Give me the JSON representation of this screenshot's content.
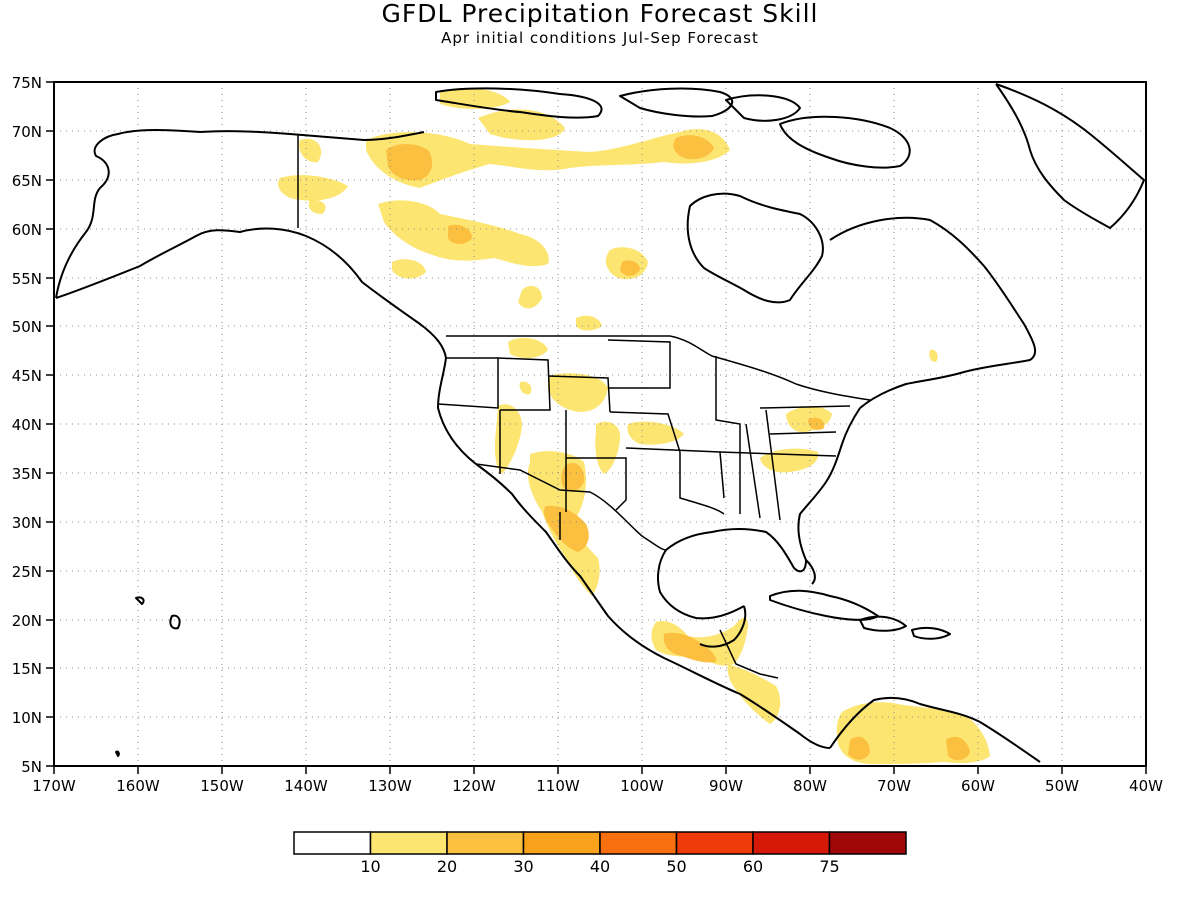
{
  "title": "GFDL Precipitation Forecast Skill",
  "subtitle": "Apr initial conditions  Jul-Sep Forecast",
  "lat_ticks": [
    "75N",
    "70N",
    "65N",
    "60N",
    "55N",
    "50N",
    "45N",
    "40N",
    "35N",
    "30N",
    "25N",
    "20N",
    "15N",
    "10N",
    "5N"
  ],
  "lon_ticks": [
    "170W",
    "160W",
    "150W",
    "140W",
    "130W",
    "120W",
    "110W",
    "100W",
    "90W",
    "80W",
    "70W",
    "60W",
    "50W",
    "40W"
  ],
  "colorbar": {
    "colors": [
      "#ffffff",
      "#fde572",
      "#fcc040",
      "#fba21c",
      "#f86f10",
      "#f03a08",
      "#d51808",
      "#a00808"
    ],
    "labels": [
      "10",
      "20",
      "30",
      "40",
      "50",
      "60",
      "75"
    ]
  },
  "colors": {
    "coast": "#000000",
    "grid": "#8c8c8c",
    "skill_10_20": "#fde572",
    "skill_20_30": "#fcc040",
    "skill_30_40": "#fba21c"
  },
  "lat_range": [
    5,
    75
  ],
  "lon_range": [
    -170,
    -40
  ]
}
